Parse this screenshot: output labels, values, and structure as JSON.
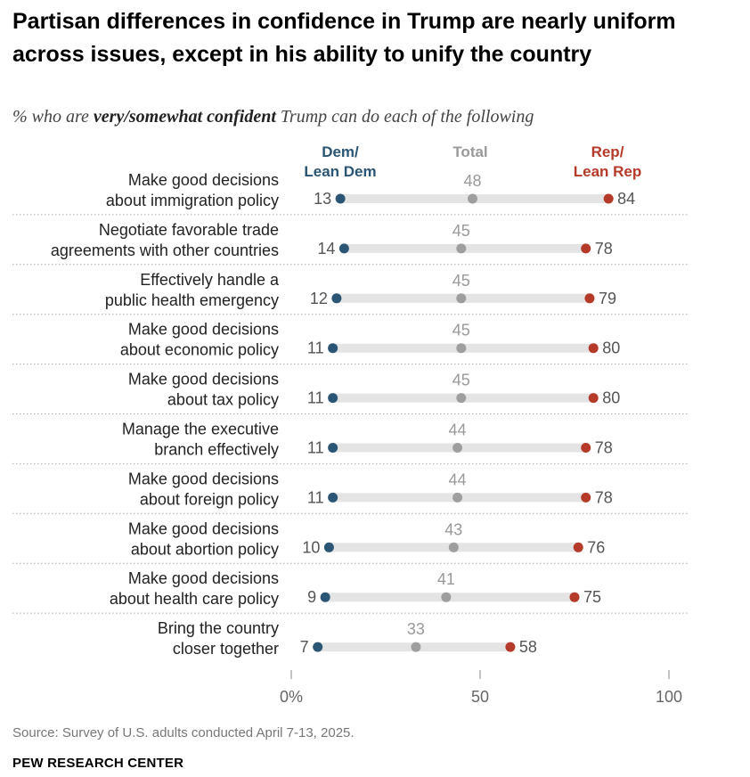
{
  "chart_data": {
    "type": "dot",
    "title": "Partisan differences in confidence in Trump are nearly uniform across issues, except in his ability to unify the country",
    "subtitle": {
      "prefix": "% who are ",
      "emphasis": "very/somewhat confident",
      "suffix": " Trump can do each of the following"
    },
    "series_headers": {
      "dem": [
        "Dem/",
        "Lean Dem"
      ],
      "total": "Total",
      "rep": [
        "Rep/",
        "Lean Rep"
      ]
    },
    "categories": [
      [
        "Make good decisions",
        "about immigration policy"
      ],
      [
        "Negotiate favorable trade",
        "agreements with other countries"
      ],
      [
        "Effectively handle a",
        "public health emergency"
      ],
      [
        "Make good decisions",
        "about economic policy"
      ],
      [
        "Make good decisions",
        "about tax policy"
      ],
      [
        "Manage the executive",
        "branch effectively"
      ],
      [
        "Make good decisions",
        "about foreign policy"
      ],
      [
        "Make good decisions",
        "about abortion policy"
      ],
      [
        "Make good decisions",
        "about health care policy"
      ],
      [
        "Bring the country",
        "closer together"
      ]
    ],
    "series": [
      {
        "name": "Dem/Lean Dem",
        "values": [
          13,
          14,
          12,
          11,
          11,
          11,
          11,
          10,
          9,
          7
        ]
      },
      {
        "name": "Total",
        "values": [
          48,
          45,
          45,
          45,
          45,
          44,
          44,
          43,
          41,
          33
        ]
      },
      {
        "name": "Rep/Lean Rep",
        "values": [
          84,
          78,
          79,
          80,
          80,
          78,
          78,
          76,
          75,
          58
        ]
      }
    ],
    "xlim": [
      0,
      100
    ],
    "xticks": [
      0,
      50,
      100
    ],
    "xtick_labels": [
      "0%",
      "50",
      "100"
    ],
    "colors": {
      "dem": "#2a5574",
      "total": "#9e9e9e",
      "rep": "#b53a2a",
      "track": "#e4e4e4"
    }
  },
  "footer": {
    "source": "Source: Survey of U.S. adults conducted April 7-13, 2025.",
    "brand": "PEW RESEARCH CENTER"
  }
}
